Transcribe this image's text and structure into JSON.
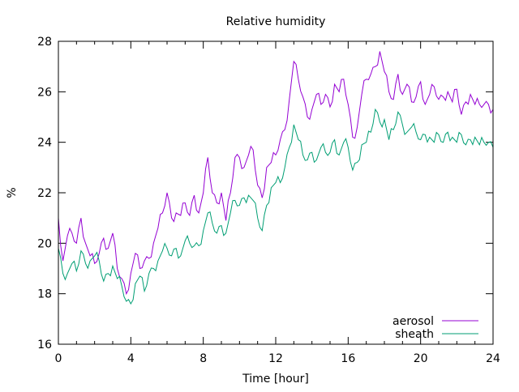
{
  "chart_data": {
    "type": "line",
    "title": "Relative humidity",
    "xlabel": "Time [hour]",
    "ylabel": "%",
    "xlim": [
      0,
      24
    ],
    "ylim": [
      16,
      28
    ],
    "xticks": [
      0,
      4,
      8,
      12,
      16,
      20,
      24
    ],
    "yticks": [
      16,
      18,
      20,
      22,
      24,
      26,
      28
    ],
    "x_minor_step": 1,
    "grid": false,
    "legend_position": "bottom-right",
    "x_start": 0,
    "x_step": 0.25,
    "series": [
      {
        "name": "aerosol",
        "color": "#9400d3",
        "values": [
          21.0,
          19.3,
          20.3,
          20.4,
          20.0,
          21.0,
          20.0,
          19.5,
          19.2,
          19.6,
          20.2,
          19.8,
          20.4,
          19.0,
          18.6,
          18.0,
          18.8,
          19.6,
          19.0,
          19.3,
          19.4,
          20.0,
          20.6,
          21.2,
          22.0,
          21.0,
          21.2,
          21.1,
          21.6,
          21.1,
          21.9,
          21.2,
          22.0,
          23.4,
          22.0,
          21.6,
          22.0,
          20.9,
          22.0,
          23.4,
          23.4,
          23.0,
          23.5,
          23.7,
          22.3,
          21.8,
          23.0,
          23.2,
          23.5,
          24.1,
          24.5,
          25.7,
          27.2,
          26.5,
          25.8,
          25.0,
          25.3,
          25.9,
          25.5,
          25.9,
          25.4,
          26.3,
          26.0,
          26.5,
          25.5,
          24.2,
          24.6,
          25.9,
          26.5,
          26.7,
          27.0,
          27.6,
          26.8,
          26.0,
          25.7,
          26.7,
          25.9,
          26.3,
          25.6,
          25.8,
          26.4,
          25.5,
          25.9,
          26.2,
          25.7,
          25.8,
          26.0,
          25.6,
          26.1,
          25.1,
          25.6,
          25.9,
          25.5,
          25.5,
          25.5,
          25.5,
          25.3
        ]
      },
      {
        "name": "sheath",
        "color": "#009e73",
        "values": [
          19.8,
          18.8,
          18.8,
          19.2,
          18.9,
          19.7,
          19.2,
          19.3,
          19.5,
          19.3,
          18.5,
          18.8,
          19.1,
          18.6,
          18.3,
          17.7,
          17.6,
          18.4,
          18.7,
          18.1,
          18.8,
          19.0,
          19.3,
          19.7,
          19.8,
          19.5,
          19.8,
          19.5,
          20.1,
          20.0,
          19.9,
          19.9,
          20.5,
          21.2,
          20.8,
          20.4,
          20.7,
          20.4,
          21.2,
          21.7,
          21.5,
          21.8,
          21.9,
          21.7,
          21.0,
          20.5,
          21.5,
          22.2,
          22.4,
          22.4,
          23.0,
          23.8,
          24.7,
          24.1,
          23.5,
          23.3,
          23.6,
          23.3,
          23.8,
          23.6,
          23.6,
          24.1,
          23.5,
          24.0,
          23.8,
          22.9,
          23.2,
          23.9,
          24.0,
          24.4,
          25.3,
          24.8,
          24.9,
          24.1,
          24.5,
          25.2,
          24.7,
          24.4,
          24.6,
          24.4,
          24.1,
          24.3,
          24.2,
          24.0,
          24.3,
          24.0,
          24.4,
          24.2,
          24.0,
          24.3,
          23.9,
          24.1,
          24.2,
          23.9,
          24.0,
          24.0,
          23.8
        ]
      }
    ]
  }
}
